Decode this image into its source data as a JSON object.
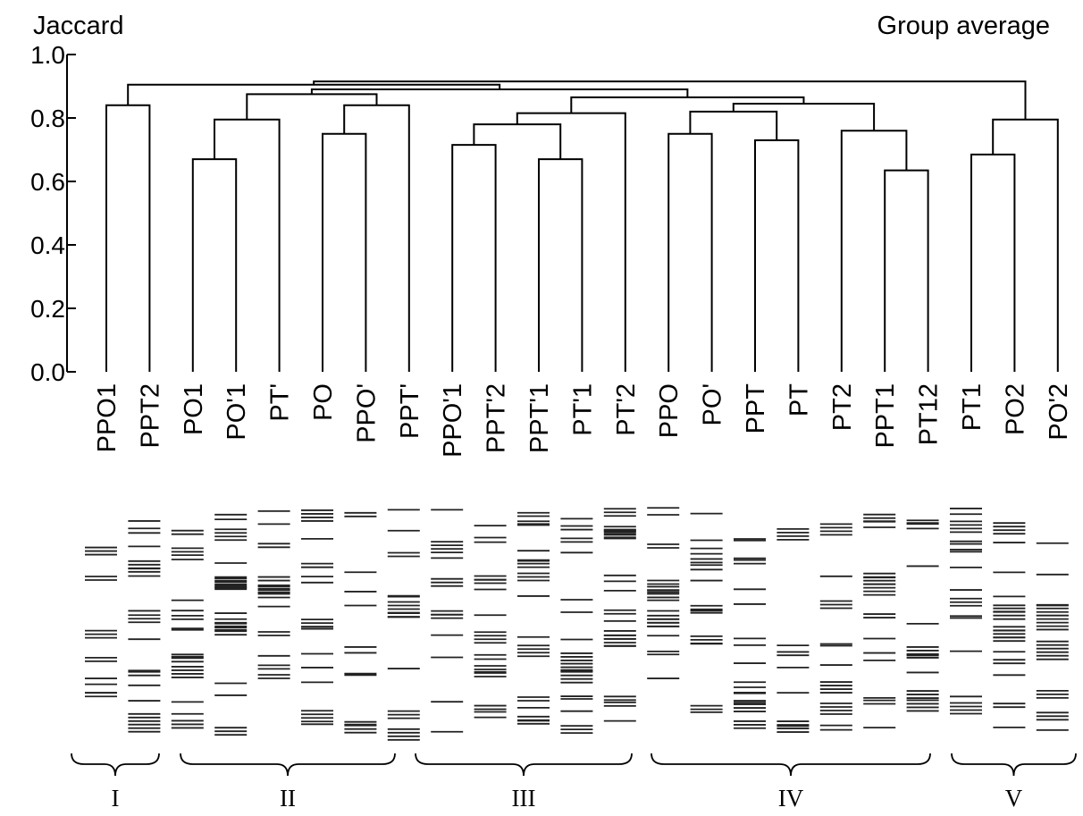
{
  "chart_data": {
    "type": "dendrogram",
    "left_title": "Jaccard",
    "right_title": "Group average",
    "ylim": [
      0,
      1.0
    ],
    "yticks": [
      "0.0",
      "0.2",
      "0.4",
      "0.6",
      "0.8",
      "1.0"
    ],
    "leaves": [
      "PPO1",
      "PPT2",
      "PO1",
      "PO'1",
      "PT'",
      "PO",
      "PPO'",
      "PPT'",
      "PPO'1",
      "PPT'2",
      "PPT'1",
      "PT'1",
      "PT'2",
      "PPO",
      "PO'",
      "PPT",
      "PT",
      "PT2",
      "PPT1",
      "PT12",
      "PT1",
      "PO2",
      "PO'2"
    ],
    "merges": [
      {
        "left": "PPO1",
        "right": "PPT2",
        "height": 0.84
      },
      {
        "left": "PO1",
        "right": "PO'1",
        "height": 0.67
      },
      {
        "left": "PO1+PO'1",
        "right": "PT'",
        "height": 0.795
      },
      {
        "left": "PO",
        "right": "PPO'",
        "height": 0.75
      },
      {
        "left": "PO+PPO'",
        "right": "PPT'",
        "height": 0.84
      },
      {
        "left": "PO1+PO'1+PT'",
        "right": "PO+PPO'+PPT'",
        "height": 0.875
      },
      {
        "left": "PPT'1",
        "right": "PT'1",
        "height": 0.67
      },
      {
        "left": "PPO'1",
        "right": "PPT'2",
        "height": 0.715
      },
      {
        "left": "PPO'1+PPT'2",
        "right": "PPT'1+PT'1",
        "height": 0.78
      },
      {
        "left": "III-sub",
        "right": "PT'2",
        "height": 0.815
      },
      {
        "left": "PPO",
        "right": "PO'",
        "height": 0.75
      },
      {
        "left": "PPT",
        "right": "PT",
        "height": 0.73
      },
      {
        "left": "PPO+PO'",
        "right": "PPT+PT",
        "height": 0.82
      },
      {
        "left": "PPT1",
        "right": "PT12",
        "height": 0.635
      },
      {
        "left": "PT2",
        "right": "PPT1+PT12",
        "height": 0.76
      },
      {
        "left": "IV-sub",
        "right": "PT2+PPT1+PT12",
        "height": 0.845
      },
      {
        "left": "III",
        "right": "IV",
        "height": 0.865
      },
      {
        "left": "II",
        "right": "III+IV",
        "height": 0.89
      },
      {
        "left": "I",
        "right": "II+III+IV",
        "height": 0.905
      },
      {
        "left": "PT1",
        "right": "PO2",
        "height": 0.685
      },
      {
        "left": "PT1+PO2",
        "right": "PO'2",
        "height": 0.795
      },
      {
        "left": "I-IV",
        "right": "V",
        "height": 0.915
      }
    ],
    "groups": [
      {
        "label": "I",
        "members": [
          "PPO1",
          "PPT2"
        ]
      },
      {
        "label": "II",
        "members": [
          "PO1",
          "PO'1",
          "PT'",
          "PO",
          "PPO'",
          "PPT'"
        ]
      },
      {
        "label": "III",
        "members": [
          "PPO'1",
          "PPT'2",
          "PPT'1",
          "PT'1",
          "PT'2"
        ]
      },
      {
        "label": "IV",
        "members": [
          "PPO",
          "PO'",
          "PPT",
          "PT",
          "PT2",
          "PPT1",
          "PT12"
        ]
      },
      {
        "label": "V",
        "members": [
          "PT1",
          "PO2",
          "PO'2"
        ]
      }
    ]
  }
}
